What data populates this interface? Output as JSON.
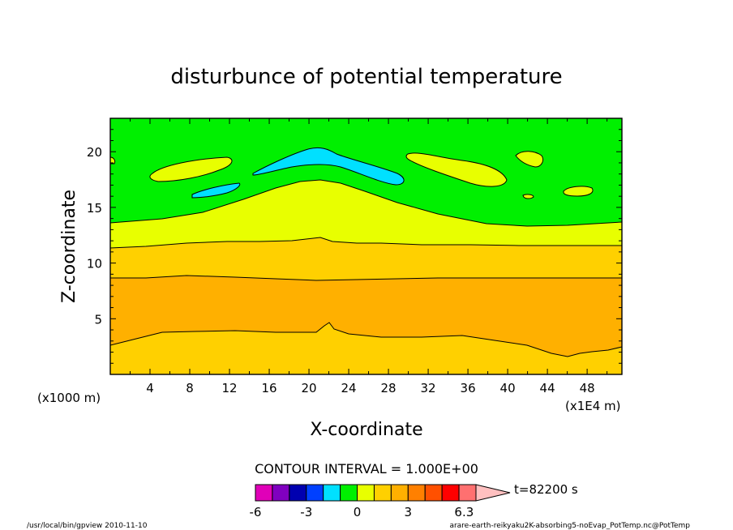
{
  "chart_data": {
    "type": "contour",
    "title": "disturbunce of potential temperature",
    "xlabel": "X-coordinate",
    "ylabel": "Z-coordinate",
    "x_unit_label": "(x1E4 m)",
    "y_unit_label": "(x1000 m)",
    "xlim": [
      0,
      51.5
    ],
    "ylim": [
      0,
      23
    ],
    "x_ticks": [
      "4",
      "8",
      "12",
      "16",
      "20",
      "24",
      "28",
      "32",
      "36",
      "40",
      "44",
      "48"
    ],
    "y_ticks": [
      "5",
      "10",
      "15",
      "20"
    ],
    "contour_interval_label": "CONTOUR INTERVAL = 1.000E+00",
    "time_label": "t=82200 s",
    "colorbar": {
      "ticks": [
        "-6",
        "-3",
        "0",
        "3",
        "6.3"
      ],
      "tick_values": [
        -6,
        -3,
        0,
        3,
        6.3
      ],
      "levels": [
        -6,
        -5,
        -4,
        -3,
        -2,
        -1,
        0,
        1,
        2,
        3,
        4,
        5,
        6,
        7
      ],
      "colors": [
        "#e000b8",
        "#8000c0",
        "#0000b0",
        "#0040ff",
        "#00e0ff",
        "#00f000",
        "#e8ff00",
        "#ffd000",
        "#ffb000",
        "#ff8000",
        "#ff5000",
        "#ff0000",
        "#ff7070",
        "#ffc0c0"
      ]
    },
    "footer_left": "/usr/local/bin/gpview  2010-11-10",
    "footer_right": "arare-earth-reikyaku2K-absorbing5-noEvap_PotTemp.nc@PotTemp"
  }
}
